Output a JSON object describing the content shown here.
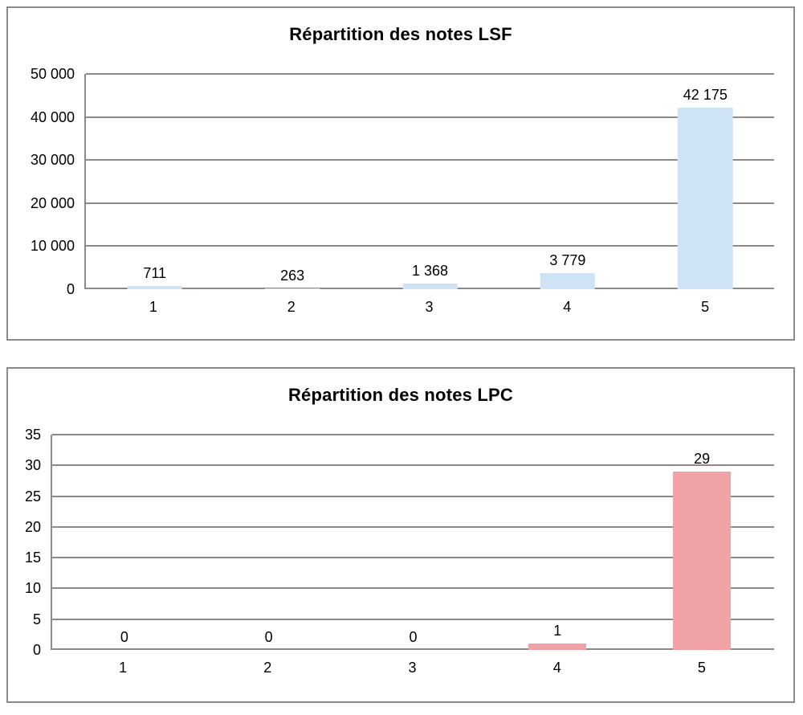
{
  "chart_data": [
    {
      "type": "bar",
      "title": "Répartition des notes LSF",
      "categories": [
        "1",
        "2",
        "3",
        "4",
        "5"
      ],
      "values": [
        711,
        263,
        1368,
        3779,
        42175
      ],
      "value_labels": [
        "711",
        "263",
        "1 368",
        "3 779",
        "42 175"
      ],
      "ylim": [
        0,
        50000
      ],
      "ytick_labels": [
        "0",
        "10 000",
        "20 000",
        "30 000",
        "40 000",
        "50 000"
      ],
      "xlabel": "",
      "ylabel": "",
      "grid": "on",
      "legend": "none",
      "bar_color": "#cfe3f6",
      "grid_color": "#8a8a8a"
    },
    {
      "type": "bar",
      "title": "Répartition des notes LPC",
      "categories": [
        "1",
        "2",
        "3",
        "4",
        "5"
      ],
      "values": [
        0,
        0,
        0,
        1,
        29
      ],
      "value_labels": [
        "0",
        "0",
        "0",
        "1",
        "29"
      ],
      "ylim": [
        0,
        35
      ],
      "ytick_labels": [
        "0",
        "5",
        "10",
        "15",
        "20",
        "25",
        "30",
        "35"
      ],
      "xlabel": "",
      "ylabel": "",
      "grid": "on",
      "legend": "none",
      "bar_color": "#f0a2a7",
      "grid_color": "#8a8a8a"
    }
  ]
}
